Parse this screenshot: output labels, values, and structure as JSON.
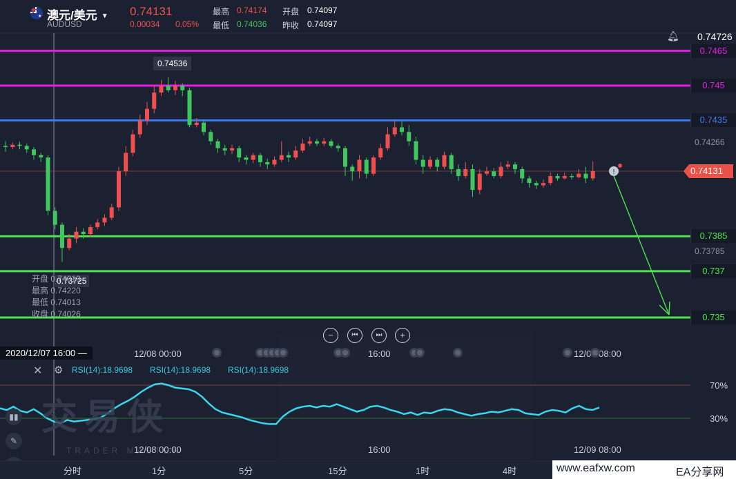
{
  "header": {
    "symbol_name": "澳元/美元",
    "symbol_code": "AUDUSD",
    "price": "0.74131",
    "change": "0.00034",
    "change_pct": "0.05%",
    "high_label": "最高",
    "high_value": "0.74174",
    "low_label": "最低",
    "low_value": "0.74036",
    "open_label": "开盘",
    "open_value": "0.74097",
    "prev_close_label": "昨收",
    "prev_close_value": "0.74097"
  },
  "price_axis": {
    "top_value": "0.74726",
    "levels": [
      {
        "value": "0.7465",
        "color": "#e81ce8"
      },
      {
        "value": "0.745",
        "color": "#e81ce8"
      },
      {
        "value": "0.7435",
        "color": "#3f7bf0"
      },
      {
        "value": "0.7385",
        "color": "#4ee44e"
      },
      {
        "value": "0.737",
        "color": "#4ee44e"
      },
      {
        "value": "0.735",
        "color": "#4ee44e"
      }
    ],
    "tick_0": "0.74266",
    "tick_1": "0.73785",
    "current": "0.74131"
  },
  "tooltips": {
    "high_marker": "0.74536",
    "low_marker": "0.73725"
  },
  "ohlc_panel": {
    "open_label": "开盘",
    "open_value": "0.74019",
    "high_label": "最高",
    "high_value": "0.74220",
    "low_label": "最低",
    "low_value": "0.74013",
    "close_label": "收盘",
    "close_value": "0.74026"
  },
  "crosshair_time": "2020/12/07 16:00 —",
  "time_axis": [
    "12/08 00:00",
    "16:00",
    "12/09 08:00"
  ],
  "time_axis_bottom": [
    "12/08 00:00",
    "16:00",
    "12/09 08:00"
  ],
  "rsi": {
    "label": "RSI(14):18.9698",
    "level_high": "70%",
    "level_low": "30%"
  },
  "watermark": {
    "cn": "交易侠",
    "en": "TRADER MASTER"
  },
  "periods": [
    "分时",
    "1分",
    "5分",
    "15分",
    "1时",
    "4时"
  ],
  "footer": {
    "site": "www.eafxw.com",
    "brand": "EA分享网"
  },
  "colors": {
    "up": "#ef4f4f",
    "down": "#3fc65c",
    "background": "#1b2130",
    "rsi_line": "#39d6ec"
  },
  "chart_data": {
    "type": "candlestick",
    "candles": [
      [
        0.7424,
        0.74235,
        0.7426,
        0.74215
      ],
      [
        0.74235,
        0.74245,
        0.74255,
        0.74225
      ],
      [
        0.74245,
        0.7424,
        0.74258,
        0.74225
      ],
      [
        0.7424,
        0.74225,
        0.7425,
        0.7421
      ],
      [
        0.74225,
        0.742,
        0.74235,
        0.7418
      ],
      [
        0.742,
        0.7419,
        0.7421,
        0.7417
      ],
      [
        0.7419,
        0.7396,
        0.742,
        0.7394
      ],
      [
        0.7396,
        0.739,
        0.73975,
        0.7388
      ],
      [
        0.739,
        0.738,
        0.7391,
        0.7374
      ],
      [
        0.738,
        0.7384,
        0.7386,
        0.7379
      ],
      [
        0.7384,
        0.7387,
        0.7389,
        0.7382
      ],
      [
        0.7387,
        0.7386,
        0.73885,
        0.7384
      ],
      [
        0.7386,
        0.7389,
        0.739,
        0.73845
      ],
      [
        0.7389,
        0.7391,
        0.73925,
        0.7388
      ],
      [
        0.7391,
        0.7393,
        0.73945,
        0.73895
      ],
      [
        0.7393,
        0.73975,
        0.7399,
        0.7392
      ],
      [
        0.73975,
        0.7413,
        0.7415,
        0.7396
      ],
      [
        0.7413,
        0.7421,
        0.7424,
        0.7411
      ],
      [
        0.7421,
        0.7429,
        0.7431,
        0.74195
      ],
      [
        0.7429,
        0.7435,
        0.74375,
        0.74275
      ],
      [
        0.7435,
        0.744,
        0.7443,
        0.7433
      ],
      [
        0.744,
        0.7447,
        0.745,
        0.7438
      ],
      [
        0.7447,
        0.745,
        0.74525,
        0.74455
      ],
      [
        0.745,
        0.7448,
        0.74536,
        0.7447
      ],
      [
        0.7448,
        0.745,
        0.7452,
        0.7446
      ],
      [
        0.745,
        0.7448,
        0.7451,
        0.74455
      ],
      [
        0.7448,
        0.7433,
        0.7449,
        0.7432
      ],
      [
        0.7433,
        0.7434,
        0.7436,
        0.7432
      ],
      [
        0.7434,
        0.743,
        0.7435,
        0.74285
      ],
      [
        0.743,
        0.7426,
        0.7431,
        0.74245
      ],
      [
        0.7426,
        0.7423,
        0.7427,
        0.7421
      ],
      [
        0.7423,
        0.7422,
        0.74245,
        0.742
      ],
      [
        0.7422,
        0.7423,
        0.74245,
        0.74205
      ],
      [
        0.7423,
        0.7419,
        0.7424,
        0.7417
      ],
      [
        0.7419,
        0.7418,
        0.742,
        0.7416
      ],
      [
        0.7418,
        0.742,
        0.7421,
        0.74165
      ],
      [
        0.742,
        0.7417,
        0.7421,
        0.7415
      ],
      [
        0.7417,
        0.7416,
        0.74185,
        0.7414
      ],
      [
        0.7416,
        0.7418,
        0.74195,
        0.7415
      ],
      [
        0.7418,
        0.742,
        0.7426,
        0.7417
      ],
      [
        0.742,
        0.7419,
        0.74215,
        0.7417
      ],
      [
        0.7419,
        0.7422,
        0.7424,
        0.7418
      ],
      [
        0.7422,
        0.7425,
        0.7427,
        0.7421
      ],
      [
        0.7425,
        0.7426,
        0.7428,
        0.7424
      ],
      [
        0.7426,
        0.7425,
        0.7427,
        0.7424
      ],
      [
        0.7425,
        0.7426,
        0.74275,
        0.7424
      ],
      [
        0.7426,
        0.7424,
        0.7427,
        0.7423
      ],
      [
        0.7424,
        0.7423,
        0.7425,
        0.74215
      ],
      [
        0.7423,
        0.7415,
        0.7424,
        0.7411
      ],
      [
        0.7415,
        0.7413,
        0.7416,
        0.7409
      ],
      [
        0.7413,
        0.7418,
        0.742,
        0.741
      ],
      [
        0.7418,
        0.7412,
        0.7419,
        0.741
      ],
      [
        0.7412,
        0.7419,
        0.742,
        0.7411
      ],
      [
        0.7419,
        0.7423,
        0.7425,
        0.7418
      ],
      [
        0.7423,
        0.7429,
        0.7432,
        0.7422
      ],
      [
        0.7429,
        0.7432,
        0.7435,
        0.7428
      ],
      [
        0.7432,
        0.743,
        0.74345,
        0.74285
      ],
      [
        0.743,
        0.7426,
        0.7433,
        0.7424
      ],
      [
        0.7426,
        0.7418,
        0.7428,
        0.7416
      ],
      [
        0.7418,
        0.7415,
        0.742,
        0.7412
      ],
      [
        0.7415,
        0.7418,
        0.74195,
        0.7414
      ],
      [
        0.7418,
        0.7415,
        0.7419,
        0.7413
      ],
      [
        0.7415,
        0.742,
        0.74215,
        0.7414
      ],
      [
        0.742,
        0.7414,
        0.7421,
        0.7412
      ],
      [
        0.7414,
        0.7411,
        0.7416,
        0.7409
      ],
      [
        0.7411,
        0.7414,
        0.7417,
        0.741
      ],
      [
        0.7414,
        0.7405,
        0.7416,
        0.7402
      ],
      [
        0.7405,
        0.7412,
        0.7414,
        0.7403
      ],
      [
        0.7412,
        0.7413,
        0.7415,
        0.7411
      ],
      [
        0.7413,
        0.7411,
        0.74145,
        0.741
      ],
      [
        0.7411,
        0.7415,
        0.7417,
        0.741
      ],
      [
        0.7415,
        0.7416,
        0.74175,
        0.7414
      ],
      [
        0.7416,
        0.7414,
        0.7417,
        0.7412
      ],
      [
        0.7414,
        0.741,
        0.7415,
        0.7408
      ],
      [
        0.741,
        0.7408,
        0.7411,
        0.7406
      ],
      [
        0.7408,
        0.7407,
        0.7409,
        0.74055
      ],
      [
        0.7407,
        0.7408,
        0.74095,
        0.7406
      ],
      [
        0.7408,
        0.7411,
        0.74125,
        0.7407
      ],
      [
        0.7411,
        0.741,
        0.7412,
        0.7409
      ],
      [
        0.741,
        0.7411,
        0.74125,
        0.74095
      ],
      [
        0.7411,
        0.74105,
        0.7412,
        0.74095
      ],
      [
        0.74105,
        0.7412,
        0.7414,
        0.741
      ],
      [
        0.7412,
        0.741,
        0.7415,
        0.7408
      ],
      [
        0.741,
        0.74131,
        0.74174,
        0.7409
      ]
    ],
    "rsi": [
      52,
      50,
      54,
      49,
      47,
      51,
      46,
      40,
      36,
      34,
      38,
      36,
      37,
      38,
      39,
      41,
      46,
      52,
      57,
      61,
      66,
      72,
      77,
      81,
      82,
      80,
      77,
      76,
      75,
      72,
      66,
      58,
      51,
      47,
      45,
      43,
      41,
      38,
      36,
      34,
      33,
      33,
      42,
      48,
      52,
      54,
      55,
      53,
      55,
      54,
      57,
      54,
      51,
      48,
      50,
      54,
      55,
      53,
      50,
      48,
      45,
      47,
      44,
      47,
      46,
      49,
      51,
      50,
      47,
      45,
      43,
      45,
      46,
      48,
      47,
      49,
      51,
      50,
      46,
      45,
      44,
      48,
      50,
      49,
      47,
      52,
      55,
      51,
      50,
      53
    ],
    "rsi_ylim": [
      0,
      100
    ]
  }
}
